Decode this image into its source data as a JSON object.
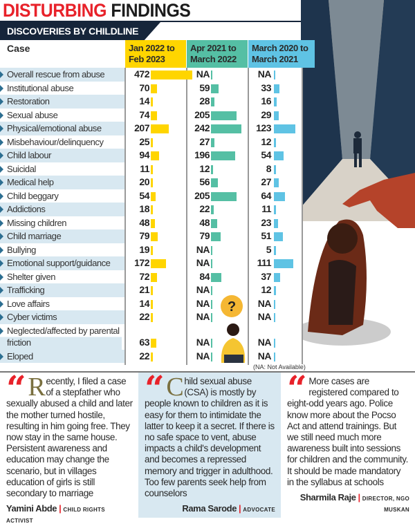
{
  "title": {
    "part1": "DISTURBING",
    "part2": "FINDINGS"
  },
  "subtitle": "DISCOVERIES BY CHILDLINE",
  "note": "(NA: Not Available)",
  "colors": {
    "col1": "#ffd500",
    "col2": "#55bfa4",
    "col3": "#5fc3e4",
    "accent": "#e8222a",
    "banner": "#16253a"
  },
  "chart_data": {
    "type": "table",
    "case_header": "Case",
    "categories": [
      "Overall rescue from abuse",
      "Institutional abuse",
      "Restoration",
      "Sexual abuse",
      "Physical/emotional abuse",
      "Misbehaviour/delinquency",
      "Child labour",
      "Suicidal",
      "Medical help",
      "Child beggary",
      "Addictions",
      "Missing children",
      "Child marriage",
      "Bullying",
      "Emotional support/guidance",
      "Shelter given",
      "Trafficking",
      "Love affairs",
      "Cyber victims",
      "Neglected/affected by parental friction",
      "Eloped"
    ],
    "series": [
      {
        "name": "Jan 2022 to Feb 2023",
        "values": [
          472,
          70,
          14,
          74,
          207,
          25,
          94,
          11,
          20,
          54,
          18,
          48,
          79,
          19,
          172,
          72,
          21,
          14,
          22,
          63,
          22
        ]
      },
      {
        "name": "Apr 2021 to March 2022",
        "values": [
          "NA",
          59,
          28,
          205,
          242,
          27,
          196,
          12,
          56,
          205,
          22,
          48,
          79,
          "NA",
          "NA",
          84,
          "NA",
          "NA",
          "NA",
          "NA",
          "NA"
        ]
      },
      {
        "name": "March 2020 to March 2021",
        "values": [
          "NA",
          33,
          16,
          29,
          123,
          12,
          54,
          8,
          27,
          64,
          11,
          23,
          51,
          5,
          111,
          37,
          12,
          "NA",
          "NA",
          "NA",
          "NA"
        ]
      }
    ]
  },
  "quotes": [
    {
      "drop": "R",
      "text": "ecently, I filed a case of a stepfather who sexually abused a child and later the mother turned hostile, resulting in him going free. They now stay in the same house. Persistent awareness and education may change the scenario, but in villages education of girls is still secondary to marriage",
      "name": "Yamini Abde",
      "role": "CHILD RIGHTS ACTIVIST"
    },
    {
      "drop": "C",
      "text": "hild sexual abuse (CSA) is mostly by people known to children as it is easy for them to intimidate the latter to keep it a secret. If there is no safe space to vent, abuse impacts a child's development and becomes a repressed memory and trigger in adulthood. Too few parents seek help from counselors",
      "name": "Rama Sarode",
      "role": "ADVOCATE"
    },
    {
      "drop": "",
      "text": "More cases are registered compared to eight-odd years ago. Police know more about the Pocso Act and attend trainings. But we still need much more awareness built into sessions for children and the community. It should be made mandatory in the syllabus at schools",
      "name": "Sharmila Raje",
      "role": "DIRECTOR, NGO MUSKAN"
    }
  ]
}
